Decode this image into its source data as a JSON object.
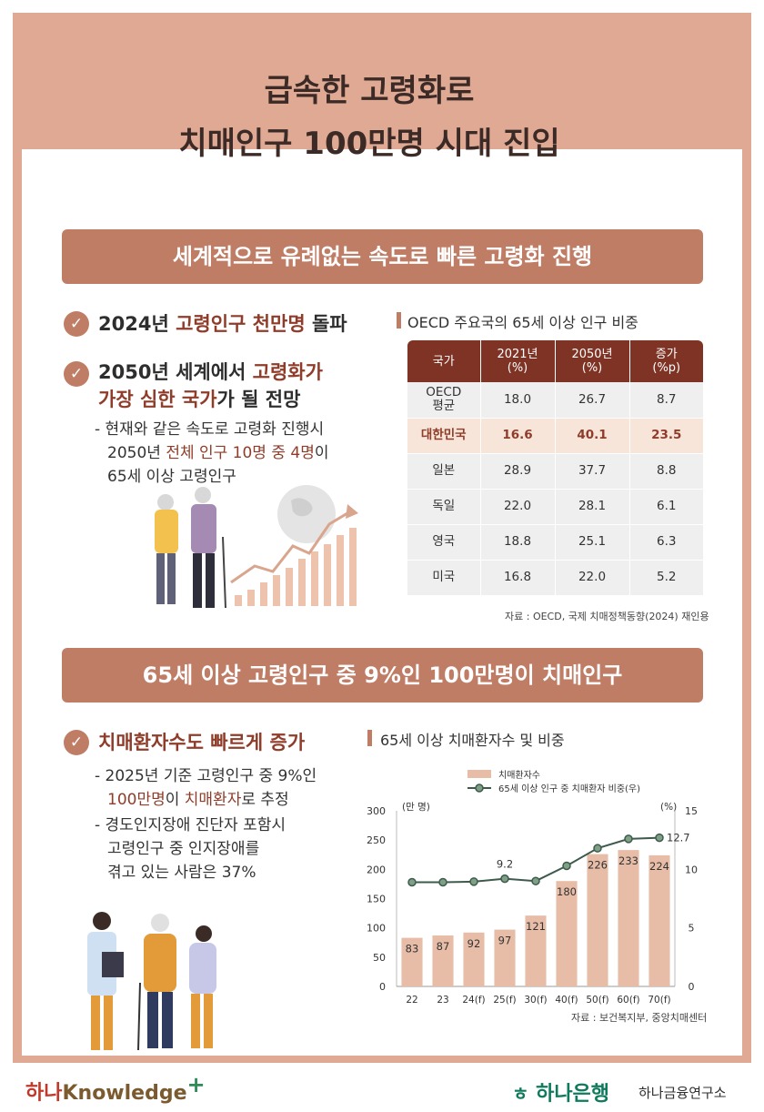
{
  "header": {
    "title_line1": "급속한 고령화로",
    "title_line2": "치매인구 100만명 시대 진입"
  },
  "section1": {
    "banner": "세계적으로 유례없는 속도로 빠른 고령화 진행",
    "bullet1": {
      "pre": "2024년 ",
      "hl": "고령인구 천만명",
      "post": " 돌파"
    },
    "bullet2": {
      "pre": "2050년 세계에서 ",
      "hl1": "고령화가",
      "hl2": "가장 심한 국가",
      "post": "가 될 전망"
    },
    "sub": {
      "l1": "- 현재와 같은 속도로 고령화 진행시",
      "l2pre": "2050년 ",
      "l2hl": "전체 인구 10명 중 4명",
      "l2post": "이",
      "l3": "65세 이상 고령인구"
    },
    "table_title": "OECD 주요국의 65세 이상 인구 비중",
    "table": {
      "headers": [
        {
          "a": "국가",
          "b": ""
        },
        {
          "a": "2021년",
          "b": "(%)"
        },
        {
          "a": "2050년",
          "b": "(%)"
        },
        {
          "a": "증가",
          "b": "(%p)"
        }
      ],
      "rows": [
        {
          "country": "OECD",
          "country2": "평균",
          "y2021": "18.0",
          "y2050": "26.7",
          "inc": "8.7"
        },
        {
          "country": "대한민국",
          "country2": "",
          "y2021": "16.6",
          "y2050": "40.1",
          "inc": "23.5"
        },
        {
          "country": "일본",
          "country2": "",
          "y2021": "28.9",
          "y2050": "37.7",
          "inc": "8.8"
        },
        {
          "country": "독일",
          "country2": "",
          "y2021": "22.0",
          "y2050": "28.1",
          "inc": "6.1"
        },
        {
          "country": "영국",
          "country2": "",
          "y2021": "18.8",
          "y2050": "25.1",
          "inc": "6.3"
        },
        {
          "country": "미국",
          "country2": "",
          "y2021": "16.8",
          "y2050": "22.0",
          "inc": "5.2"
        }
      ]
    },
    "source": "자료 : OECD, 국제 치매정책동향(2024) 재인용"
  },
  "section2": {
    "banner": "65세 이상 고령인구 중 9%인 100만명이 치매인구",
    "bullet": "치매환자수도 빠르게 증가",
    "sub1": {
      "l1": "- 2025년 기준 고령인구 중 9%인",
      "l2hl": "100만명",
      "l2mid": "이 ",
      "l2hl2": "치매환자",
      "l2post": "로 추정"
    },
    "sub2": {
      "l1": "- 경도인지장애 진단자 포함시",
      "l2": "고령인구 중 인지장애를",
      "l3": "겪고 있는 사람은 37%"
    },
    "chart_title": "65세 이상 치매환자수 및 비중",
    "source": "자료 : 보건복지부, 중앙치매센터"
  },
  "chart_data": {
    "type": "bar",
    "title": "65세 이상 치매환자수 및 비중",
    "categories": [
      "22",
      "23",
      "24(f)",
      "25(f)",
      "30(f)",
      "40(f)",
      "50(f)",
      "60(f)",
      "70(f)"
    ],
    "series": [
      {
        "name": "치매환자수",
        "type": "bar",
        "axis": "left",
        "values": [
          83,
          87,
          92,
          97,
          121,
          180,
          226,
          233,
          224
        ]
      },
      {
        "name": "65세 이상 인구 중 치매환자 비중(우)",
        "type": "line",
        "axis": "right",
        "values": [
          8.9,
          8.9,
          8.95,
          9.2,
          9.0,
          10.3,
          11.8,
          12.6,
          12.7
        ]
      }
    ],
    "line_labels": [
      {
        "index": 3,
        "text": "9.2"
      },
      {
        "index": 8,
        "text": "12.7"
      }
    ],
    "ylabel": "(만 명)",
    "ylabel_right": "(%)",
    "ylim": [
      0,
      300
    ],
    "ylim_right": [
      0,
      15
    ],
    "yticks": [
      0,
      50,
      100,
      150,
      200,
      250,
      300
    ],
    "yticks_right": [
      0,
      5,
      10,
      15
    ],
    "colors": {
      "bar": "#e7bda7",
      "line": "#3d5a4d",
      "marker": "#7fa085"
    }
  },
  "footer": {
    "left_a": "하나",
    "left_b": "Knowledge",
    "left_plus": "+",
    "right_logo": "하나은행",
    "right_inst": "하나금융연구소"
  }
}
